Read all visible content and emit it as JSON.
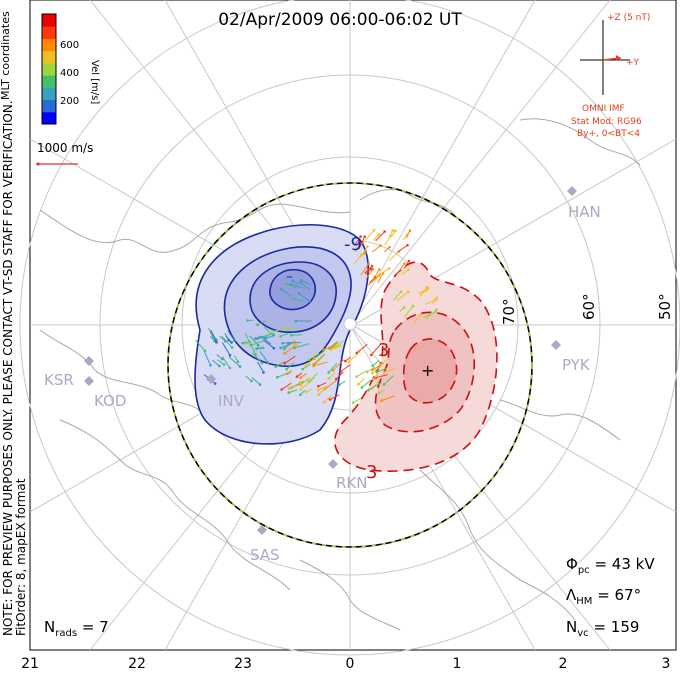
{
  "title": "02/Apr/2009 06:00-06:02 UT",
  "coordinates_label": "MLT coordinates",
  "side_note": "NOTE: FOR PREVIEW PURPOSES ONLY. PLEASE CONTACT VT-SD STAFF FOR VERIFICATION.",
  "fitorder_note": "FitOrder: 8, mapEX format",
  "colorbar": {
    "unit_label": "Vel [m/s]",
    "ticks": [
      "600",
      "400",
      "200"
    ],
    "colors": [
      "#0000ff",
      "#2a6ad8",
      "#3aa0c0",
      "#44c070",
      "#9ad63c",
      "#f0c020",
      "#ff8a00",
      "#ff3a10",
      "#ee0000"
    ]
  },
  "scale_vector_label": "1000 m/s",
  "imf": {
    "z_label": "+Z (5 nT)",
    "y_label": "+Y",
    "source": "OMNI IMF",
    "stat_mod": "Stat Mod: RG96",
    "condition": "By+, 0<BT<4"
  },
  "latitude_labels": [
    "70°",
    "60°",
    "50°"
  ],
  "stations": [
    "HAN",
    "PYK",
    "KSR",
    "KOD",
    "INV",
    "RKN",
    "SAS"
  ],
  "contour_labels": [
    "-9",
    "3",
    "3"
  ],
  "stats": {
    "phi_symbol": "Φ",
    "phi_sub": "pc",
    "phi_value": "= 43 kV",
    "lambda_symbol": "Λ",
    "lambda_sub": "HM",
    "lambda_value": "= 67°",
    "nvc_symbol": "N",
    "nvc_sub": "vc",
    "nvc_value": "= 159",
    "nrads_symbol": "N",
    "nrads_sub": "rads",
    "nrads_value": "= 7"
  },
  "mlt_ticks": [
    "21",
    "22",
    "23",
    "0",
    "1",
    "2",
    "3"
  ],
  "colors": {
    "negative_cell": "#1a2aa0",
    "positive_cell": "#cc1010",
    "hmb": "#000000",
    "hmb_dash": "#9ad63c",
    "grid": "#c8c8c8",
    "coast": "#a8a8a8"
  }
}
